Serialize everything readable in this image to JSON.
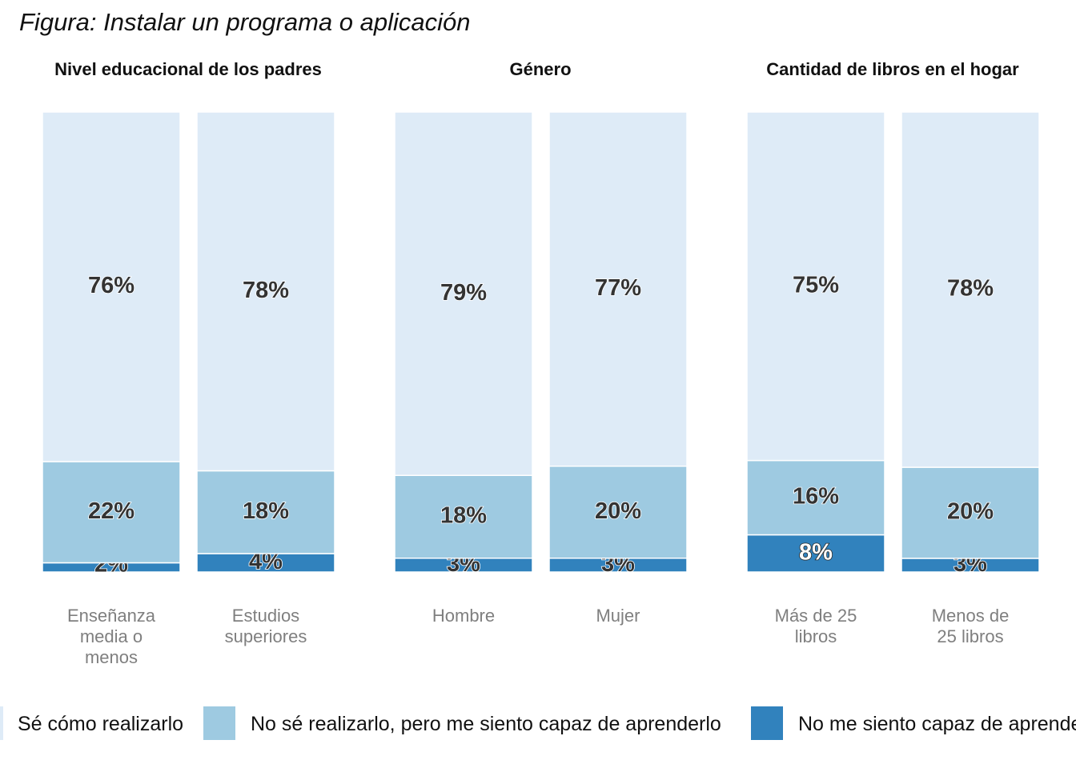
{
  "chart_data": {
    "type": "bar",
    "stacked": true,
    "title": "Figura: Instalar un programa o aplicación",
    "colors": {
      "Sé cómo realizarlo": "#deebf7",
      "No sé realizarlo, pero me siento capaz de aprenderlo": "#9ecae1",
      "No me siento capaz de aprenderlo": "#3182bd"
    },
    "legend": {
      "position": "bottom",
      "entries": [
        "Sé cómo realizarlo",
        "No sé realizarlo, pero me siento capaz de aprenderlo",
        "No me siento capaz de aprenderlo"
      ]
    },
    "ylim": [
      0,
      1
    ],
    "grid": false,
    "panels": [
      {
        "title": "Nivel educacional de los padres",
        "categories": [
          "Enseñanza media o menos",
          "Estudios superiores"
        ],
        "series": [
          {
            "name": "Sé cómo realizarlo",
            "values": [
              0.76,
              0.78
            ],
            "labels": [
              "76%",
              "78%"
            ]
          },
          {
            "name": "No sé realizarlo, pero me siento capaz de aprenderlo",
            "values": [
              0.22,
              0.18
            ],
            "labels": [
              "22%",
              "18%"
            ]
          },
          {
            "name": "No me siento capaz de aprenderlo",
            "values": [
              0.02,
              0.04
            ],
            "labels": [
              "2%",
              "4%"
            ]
          }
        ]
      },
      {
        "title": "Género",
        "categories": [
          "Hombre",
          "Mujer"
        ],
        "series": [
          {
            "name": "Sé cómo realizarlo",
            "values": [
              0.79,
              0.77
            ],
            "labels": [
              "79%",
              "77%"
            ]
          },
          {
            "name": "No sé realizarlo, pero me siento capaz de aprenderlo",
            "values": [
              0.18,
              0.2
            ],
            "labels": [
              "18%",
              "20%"
            ]
          },
          {
            "name": "No me siento capaz de aprenderlo",
            "values": [
              0.03,
              0.03
            ],
            "labels": [
              "3%",
              "3%"
            ]
          }
        ]
      },
      {
        "title": "Cantidad de libros en el hogar",
        "categories": [
          "Más de 25 libros",
          "Menos de 25 libros"
        ],
        "series": [
          {
            "name": "Sé cómo realizarlo",
            "values": [
              0.75,
              0.78
            ],
            "labels": [
              "75%",
              "78%"
            ]
          },
          {
            "name": "No sé realizarlo, pero me siento capaz de aprenderlo",
            "values": [
              0.16,
              0.2
            ],
            "labels": [
              "16%",
              "20%"
            ]
          },
          {
            "name": "No me siento capaz de aprenderlo",
            "values": [
              0.08,
              0.03
            ],
            "labels": [
              "8%",
              "3%"
            ]
          }
        ]
      }
    ]
  }
}
